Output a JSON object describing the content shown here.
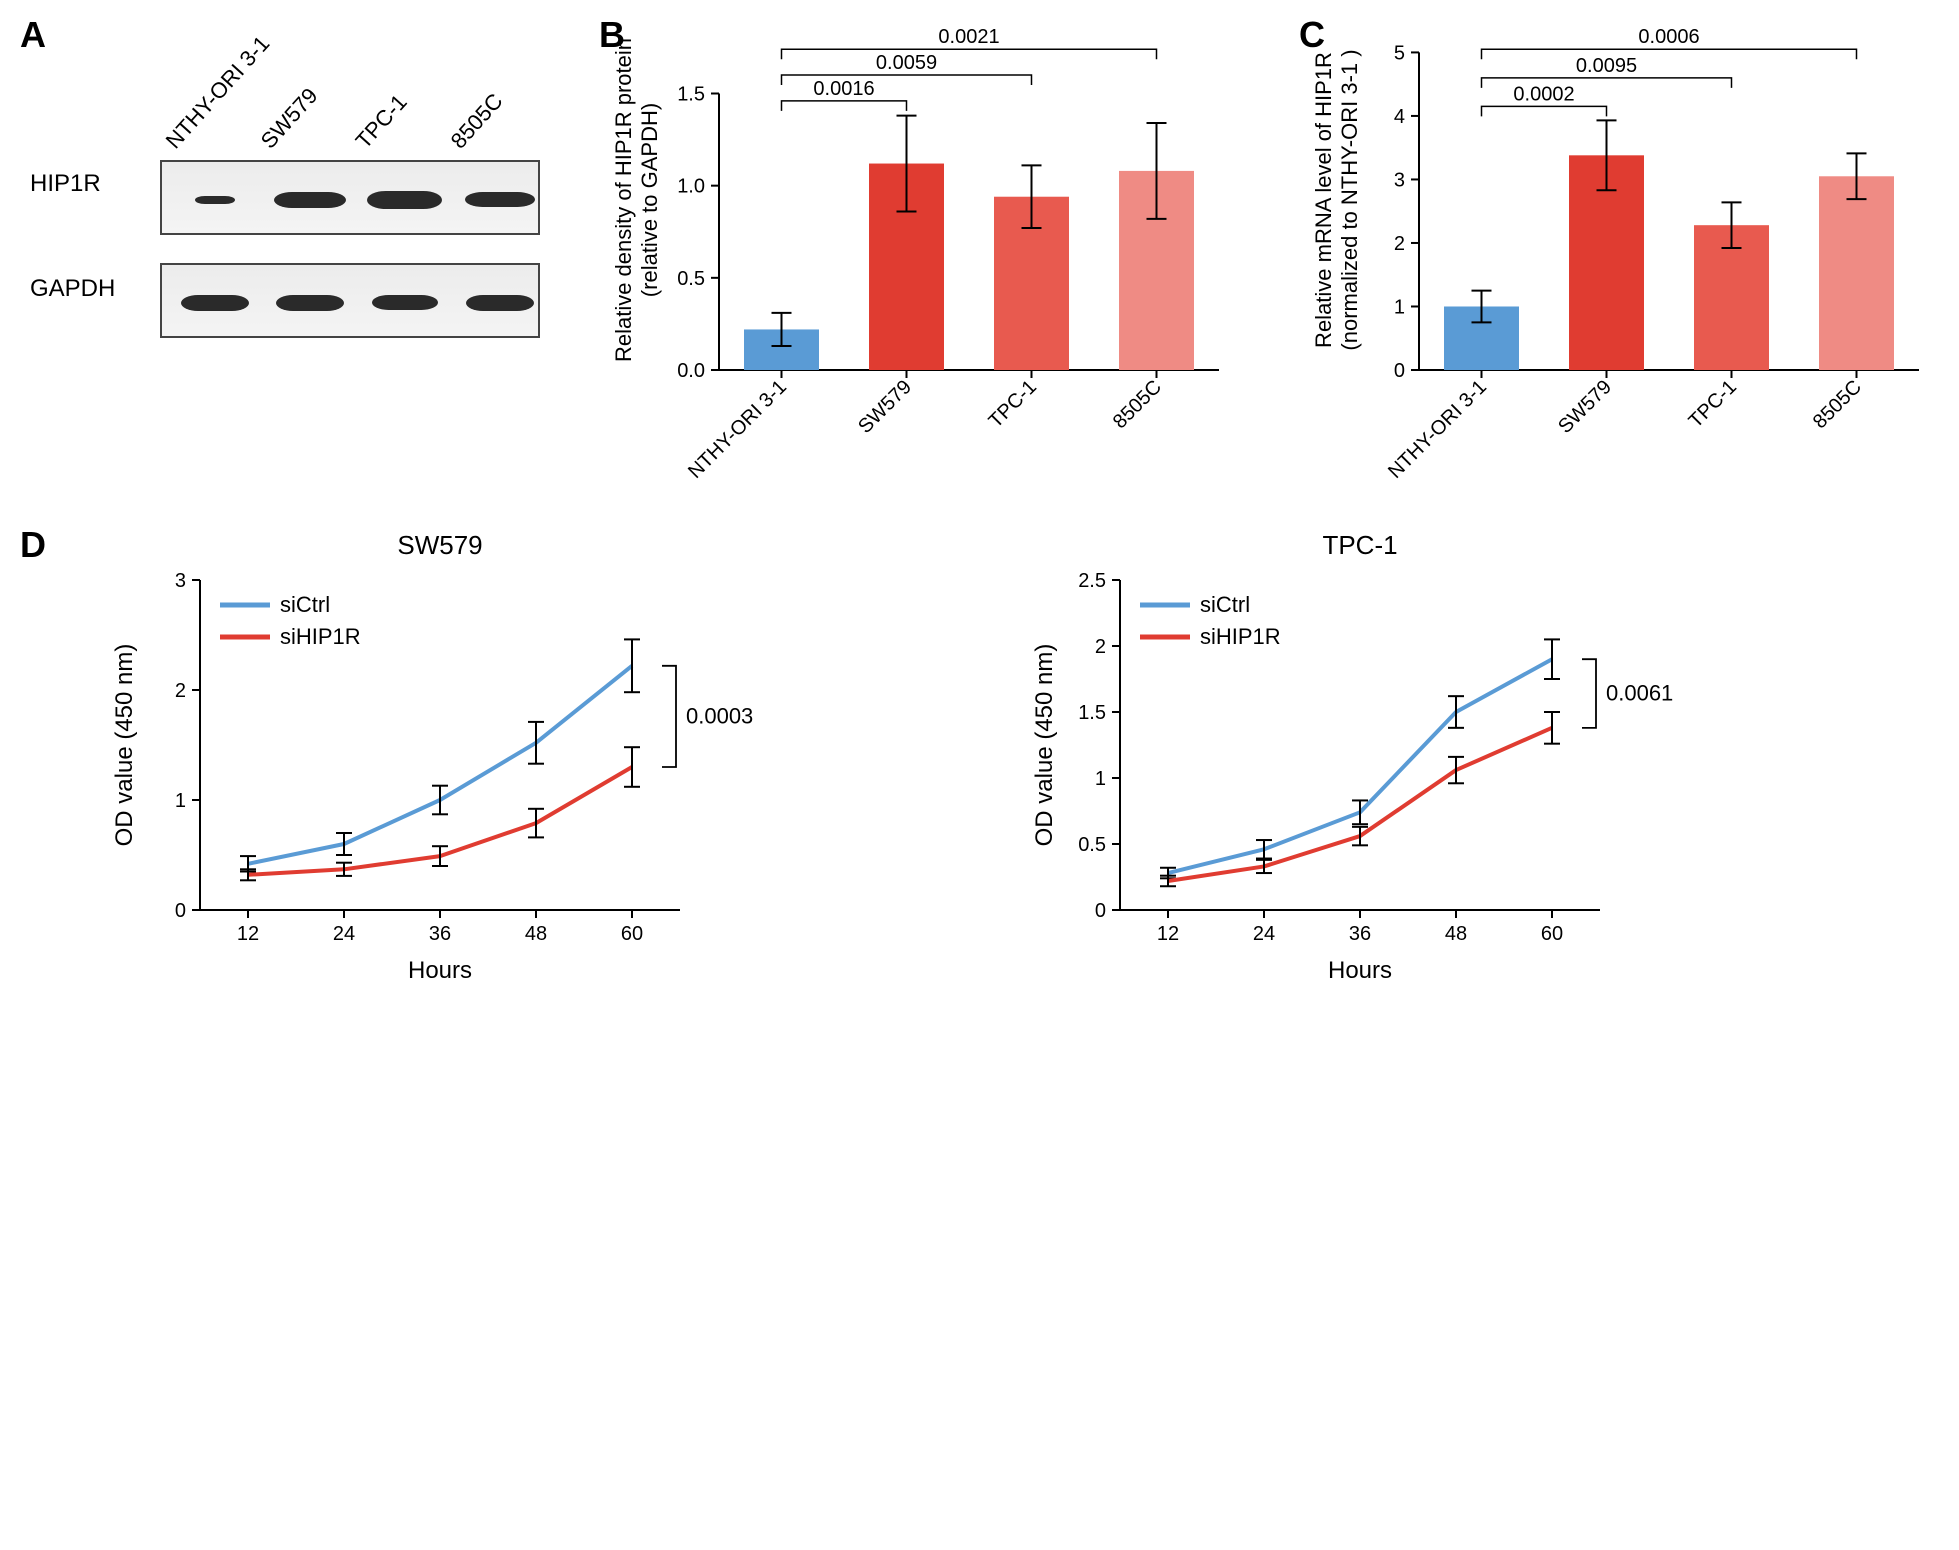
{
  "panelA": {
    "label": "A",
    "lanes": [
      "NTHY-ORI 3-1",
      "SW579",
      "TPC-1",
      "8505C"
    ],
    "rows": [
      {
        "name": "HIP1R",
        "band_widths": [
          40,
          72,
          75,
          70
        ],
        "band_heights": [
          8,
          16,
          18,
          15
        ]
      },
      {
        "name": "GAPDH",
        "band_widths": [
          68,
          68,
          66,
          68
        ],
        "band_heights": [
          16,
          16,
          15,
          16
        ]
      }
    ]
  },
  "panelB": {
    "label": "B",
    "type": "bar",
    "ylabel_line1": "Relative density of HIP1R protein",
    "ylabel_line2": "(relative to GAPDH)",
    "categories": [
      "NTHY-ORI 3-1",
      "SW579",
      "TPC-1",
      "8505C"
    ],
    "values": [
      0.22,
      1.12,
      0.94,
      1.08
    ],
    "err": [
      0.09,
      0.26,
      0.17,
      0.26
    ],
    "colors": [
      "#5a9bd5",
      "#e03c31",
      "#e85a4f",
      "#ef8b84"
    ],
    "ylim": [
      0,
      1.5
    ],
    "yticks": [
      0.0,
      0.5,
      1.0,
      1.5
    ],
    "pvals": [
      {
        "to": 1,
        "y": 1.46,
        "text": "0.0016"
      },
      {
        "to": 2,
        "y": 1.6,
        "text": "0.0059"
      },
      {
        "to": 3,
        "y": 1.74,
        "text": "0.0021"
      }
    ],
    "label_fontsize": 22,
    "tick_fontsize": 20
  },
  "panelC": {
    "label": "C",
    "type": "bar",
    "ylabel_line1": "Relative mRNA level of HIP1R",
    "ylabel_line2": "(normalized to NTHY-ORI 3-1 )",
    "categories": [
      "NTHY-ORI 3-1",
      "SW579",
      "TPC-1",
      "8505C"
    ],
    "values": [
      1.0,
      3.38,
      2.28,
      3.05
    ],
    "err": [
      0.25,
      0.55,
      0.36,
      0.36
    ],
    "colors": [
      "#5a9bd5",
      "#e03c31",
      "#e85a4f",
      "#ef8b84"
    ],
    "ylim": [
      0,
      5
    ],
    "yticks": [
      0,
      1,
      2,
      3,
      4,
      5
    ],
    "pvals": [
      {
        "to": 1,
        "y": 4.15,
        "text": "0.0002"
      },
      {
        "to": 2,
        "y": 4.6,
        "text": "0.0095"
      },
      {
        "to": 3,
        "y": 5.05,
        "text": "0.0006"
      }
    ],
    "label_fontsize": 22,
    "tick_fontsize": 20
  },
  "panelD": {
    "label": "D",
    "charts": [
      {
        "title": "SW579",
        "xlabel": "Hours",
        "ylabel": "OD value (450 nm)",
        "x": [
          12,
          24,
          36,
          48,
          60
        ],
        "xlim": [
          6,
          66
        ],
        "ylim": [
          0,
          3
        ],
        "yticks": [
          0,
          1,
          2,
          3
        ],
        "series": [
          {
            "name": "siCtrl",
            "color": "#5a9bd5",
            "y": [
              0.42,
              0.6,
              1.0,
              1.52,
              2.22
            ],
            "err": [
              0.07,
              0.1,
              0.13,
              0.19,
              0.24
            ]
          },
          {
            "name": "siHIP1R",
            "color": "#e03c31",
            "y": [
              0.32,
              0.37,
              0.49,
              0.79,
              1.3
            ],
            "err": [
              0.05,
              0.06,
              0.09,
              0.13,
              0.18
            ]
          }
        ],
        "pval": "0.0003"
      },
      {
        "title": "TPC-1",
        "xlabel": "Hours",
        "ylabel": "OD value (450 nm)",
        "x": [
          12,
          24,
          36,
          48,
          60
        ],
        "xlim": [
          6,
          66
        ],
        "ylim": [
          0,
          2.5
        ],
        "yticks": [
          0,
          0.5,
          1.0,
          1.5,
          2.0,
          2.5
        ],
        "series": [
          {
            "name": "siCtrl",
            "color": "#5a9bd5",
            "y": [
              0.28,
              0.46,
              0.74,
              1.5,
              1.9
            ],
            "err": [
              0.04,
              0.07,
              0.09,
              0.12,
              0.15
            ]
          },
          {
            "name": "siHIP1R",
            "color": "#e03c31",
            "y": [
              0.22,
              0.33,
              0.56,
              1.06,
              1.38
            ],
            "err": [
              0.04,
              0.05,
              0.07,
              0.1,
              0.12
            ]
          }
        ],
        "pval": "0.0061"
      }
    ],
    "legend_fontsize": 22,
    "tick_fontsize": 20
  }
}
